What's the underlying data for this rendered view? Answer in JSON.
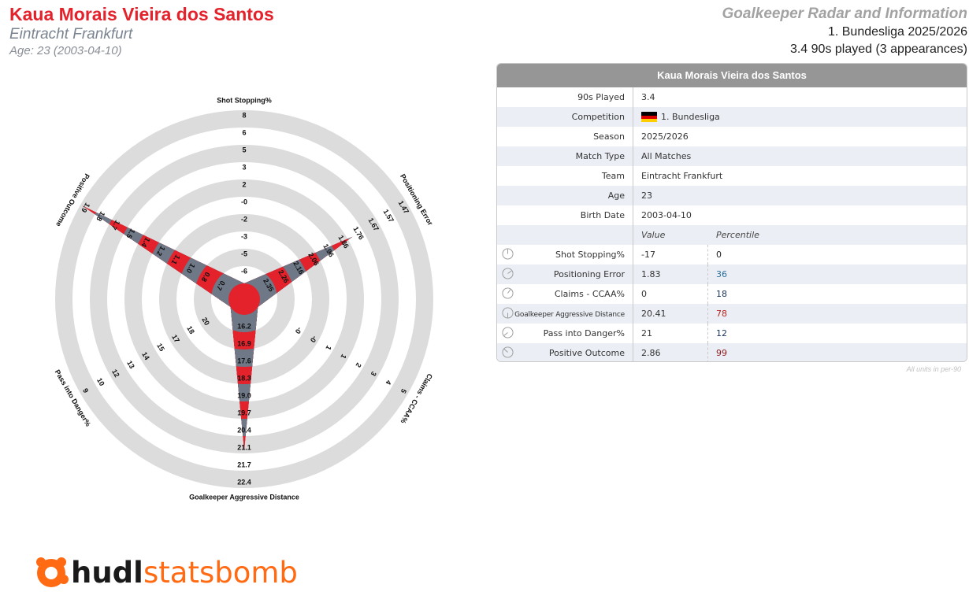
{
  "header": {
    "player_name": "Kaua Morais Vieira dos Santos",
    "team": "Eintracht Frankfurt",
    "age_line": "Age: 23 (2003-04-10)",
    "report_title": "Goalkeeper Radar and Information",
    "league_season": "1. Bundesliga 2025/2026",
    "minutes_line": "3.4 90s played (3 appearances)"
  },
  "colors": {
    "brand_red": "#e3222c",
    "radar_slate": "#6e7887",
    "ring_grey": "#dcdcdc",
    "pct_blue": "#2a6f9e",
    "pct_navy": "#1a3358",
    "pct_red": "#b3251e",
    "pct_darkred": "#8c1b1f",
    "logo_orange": "#ff6a13"
  },
  "chart_data": {
    "type": "radar",
    "axes": [
      {
        "name": "Shot Stopping%",
        "ticks": [
          "-6",
          "-5",
          "-3",
          "-2",
          "-0",
          "2",
          "3",
          "5",
          "6",
          "8"
        ],
        "value": -17,
        "value_fraction": 0.0
      },
      {
        "name": "Positioning Error",
        "ticks": [
          "2.35",
          "2.26",
          "2.16",
          "2.06",
          "1.96",
          "1.86",
          "1.76",
          "1.67",
          "1.57",
          "1.47"
        ],
        "value": 1.83,
        "value_fraction": 0.63
      },
      {
        "name": "Claims - CCAA%",
        "ticks": [
          "-0",
          "-0",
          "1",
          "1",
          "2",
          "3",
          "4",
          "5"
        ],
        "value": 0,
        "value_fraction": 0.0
      },
      {
        "name": "Goalkeeper Aggressive Distance",
        "ticks": [
          "16.2",
          "16.9",
          "17.6",
          "18.3",
          "19.0",
          "19.7",
          "20.4",
          "21.1",
          "21.7",
          "22.4"
        ],
        "value": 20.41,
        "value_fraction": 0.78
      },
      {
        "name": "Pass into Danger%",
        "ticks": [
          "20",
          "18",
          "17",
          "15",
          "14",
          "13",
          "12",
          "10",
          "9"
        ],
        "value": 21,
        "value_fraction": 0.0
      },
      {
        "name": "Positive Outcome",
        "ticks": [
          "0.7",
          "0.8",
          "1.0",
          "1.1",
          "1.2",
          "1.4",
          "1.5",
          "1.7",
          "1.8",
          "1.9"
        ],
        "value": 2.86,
        "value_fraction": 0.99
      }
    ]
  },
  "table": {
    "header": "Kaua Morais Vieira dos Santos",
    "info_rows": [
      {
        "label": "90s Played",
        "value": "3.4"
      },
      {
        "label": "Competition",
        "value": "1. Bundesliga"
      },
      {
        "label": "Season",
        "value": "2025/2026"
      },
      {
        "label": "Match Type",
        "value": "All Matches"
      },
      {
        "label": "Team",
        "value": "Eintracht Frankfurt"
      },
      {
        "label": "Age",
        "value": "23"
      },
      {
        "label": "Birth Date",
        "value": "2003-04-10"
      }
    ],
    "col_value": "Value",
    "col_percentile": "Percentile",
    "metrics": [
      {
        "label": "Shot Stopping%",
        "value": "-17",
        "percentile": "0",
        "color": "#222222"
      },
      {
        "label": "Positioning Error",
        "value": "1.83",
        "percentile": "36",
        "color": "#2a6f9e"
      },
      {
        "label": "Claims - CCAA%",
        "value": "0",
        "percentile": "18",
        "color": "#1a3358"
      },
      {
        "label": "Goalkeeper Aggressive Distance",
        "value": "20.41",
        "percentile": "78",
        "color": "#b3251e"
      },
      {
        "label": "Pass into Danger%",
        "value": "21",
        "percentile": "12",
        "color": "#1a3358"
      },
      {
        "label": "Positive Outcome",
        "value": "2.86",
        "percentile": "99",
        "color": "#8c1b1f"
      }
    ],
    "units_note": "All units in per-90"
  },
  "logo": {
    "word1": "hudl",
    "word2": "statsbomb"
  }
}
